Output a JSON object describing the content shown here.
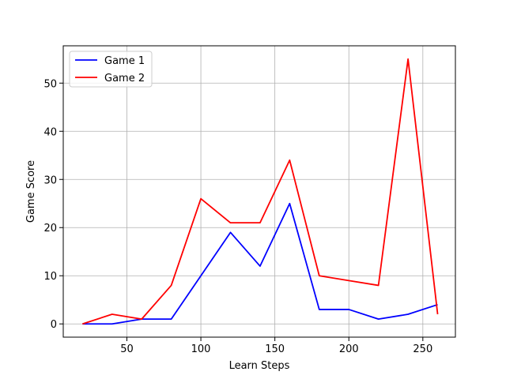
{
  "chart_data": {
    "type": "line",
    "title": "",
    "xlabel": "Learn Steps",
    "ylabel": "Game Score",
    "xlim": [
      7,
      272
    ],
    "ylim": [
      -2.75,
      57.75
    ],
    "xticks": [
      50,
      100,
      150,
      200,
      250
    ],
    "yticks": [
      0,
      10,
      20,
      30,
      40,
      50
    ],
    "grid": true,
    "legend_position": "top-left",
    "x": [
      20,
      40,
      60,
      80,
      100,
      120,
      140,
      160,
      180,
      200,
      220,
      240,
      260
    ],
    "series": [
      {
        "name": "Game 1",
        "color": "#0000ff",
        "values": [
          0,
          0,
          1,
          1,
          10,
          19,
          12,
          25,
          3,
          3,
          1,
          2,
          4
        ]
      },
      {
        "name": "Game 2",
        "color": "#ff0000",
        "values": [
          0,
          2,
          1,
          8,
          26,
          21,
          21,
          34,
          10,
          9,
          8,
          55,
          2
        ]
      }
    ]
  }
}
